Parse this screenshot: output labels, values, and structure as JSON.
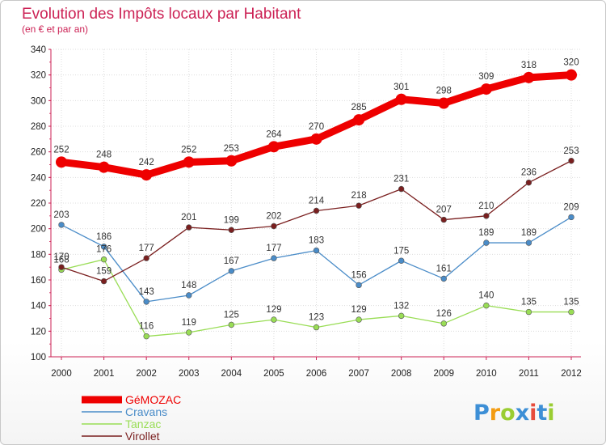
{
  "chart_data": {
    "type": "line",
    "title": "Evolution des Impôts locaux par Habitant",
    "subtitle": "(en € et par an)",
    "xlabel": "",
    "ylabel": "",
    "x": [
      "2000",
      "2001",
      "2002",
      "2003",
      "2004",
      "2005",
      "2006",
      "2007",
      "2008",
      "2009",
      "2010",
      "2011",
      "2012"
    ],
    "ylim": [
      100,
      340
    ],
    "yticks": [
      100,
      120,
      140,
      160,
      180,
      200,
      220,
      240,
      260,
      280,
      300,
      320,
      340
    ],
    "legend_position": "bottom-left",
    "series": [
      {
        "name": "GéMOZAC",
        "color": "#ee0000",
        "width": "thick",
        "values": [
          252,
          248,
          242,
          252,
          253,
          264,
          270,
          285,
          301,
          298,
          309,
          318,
          320
        ]
      },
      {
        "name": "Cravans",
        "color": "#4a8cc8",
        "width": "thin",
        "values": [
          203,
          186,
          143,
          148,
          167,
          177,
          183,
          156,
          175,
          161,
          189,
          189,
          209
        ]
      },
      {
        "name": "Tanzac",
        "color": "#99dd55",
        "width": "thin",
        "values": [
          168,
          176,
          116,
          119,
          125,
          129,
          123,
          129,
          132,
          126,
          140,
          135,
          135
        ]
      },
      {
        "name": "Virollet",
        "color": "#7a1f1f",
        "width": "thin",
        "values": [
          170,
          159,
          177,
          201,
          199,
          202,
          214,
          218,
          231,
          207,
          210,
          236,
          253
        ]
      }
    ]
  },
  "logo": {
    "letters": [
      "P",
      "r",
      "o",
      "x",
      "i",
      "t",
      "i"
    ],
    "colors": [
      "#3d8fd6",
      "#f39c12",
      "#9acd32",
      "#3d8fd6",
      "#e74c3c",
      "#3d8fd6",
      "#9acd32"
    ]
  }
}
